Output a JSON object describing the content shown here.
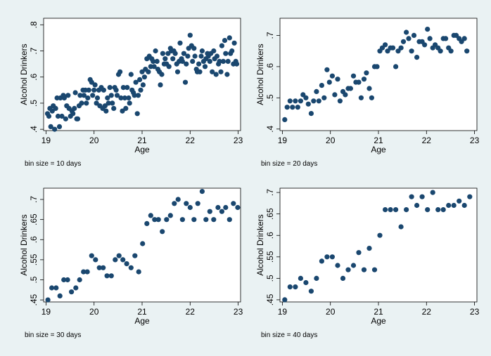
{
  "chart_data": [
    {
      "type": "scatter",
      "xlabel": "Age",
      "ylabel": "Alcohol Drinkers",
      "note": "bin size = 10 days",
      "xlim": [
        18.95,
        23.05
      ],
      "ylim": [
        0.395,
        0.825
      ],
      "xticks": [
        "19",
        "20",
        "21",
        "22",
        "23"
      ],
      "yticks": [
        ".4",
        ".5",
        ".6",
        ".7",
        ".8"
      ],
      "points": [
        [
          19.03,
          0.46
        ],
        [
          19.06,
          0.45
        ],
        [
          19.08,
          0.48
        ],
        [
          19.1,
          0.41
        ],
        [
          19.13,
          0.47
        ],
        [
          19.15,
          0.49
        ],
        [
          19.18,
          0.4
        ],
        [
          19.2,
          0.48
        ],
        [
          19.23,
          0.52
        ],
        [
          19.25,
          0.45
        ],
        [
          19.28,
          0.41
        ],
        [
          19.3,
          0.52
        ],
        [
          19.33,
          0.45
        ],
        [
          19.36,
          0.53
        ],
        [
          19.38,
          0.52
        ],
        [
          19.41,
          0.44
        ],
        [
          19.43,
          0.49
        ],
        [
          19.46,
          0.53
        ],
        [
          19.48,
          0.48
        ],
        [
          19.51,
          0.45
        ],
        [
          19.54,
          0.47
        ],
        [
          19.56,
          0.46
        ],
        [
          19.59,
          0.48
        ],
        [
          19.61,
          0.54
        ],
        [
          19.64,
          0.44
        ],
        [
          19.66,
          0.44
        ],
        [
          19.69,
          0.49
        ],
        [
          19.71,
          0.53
        ],
        [
          19.74,
          0.5
        ],
        [
          19.77,
          0.55
        ],
        [
          19.79,
          0.53
        ],
        [
          19.82,
          0.55
        ],
        [
          19.84,
          0.5
        ],
        [
          19.87,
          0.52
        ],
        [
          19.89,
          0.55
        ],
        [
          19.92,
          0.59
        ],
        [
          19.95,
          0.58
        ],
        [
          19.97,
          0.53
        ],
        [
          20.0,
          0.55
        ],
        [
          20.02,
          0.57
        ],
        [
          20.05,
          0.5
        ],
        [
          20.07,
          0.52
        ],
        [
          20.1,
          0.55
        ],
        [
          20.12,
          0.49
        ],
        [
          20.15,
          0.56
        ],
        [
          20.18,
          0.48
        ],
        [
          20.2,
          0.55
        ],
        [
          20.23,
          0.49
        ],
        [
          20.25,
          0.47
        ],
        [
          20.28,
          0.52
        ],
        [
          20.3,
          0.5
        ],
        [
          20.33,
          0.56
        ],
        [
          20.36,
          0.53
        ],
        [
          20.38,
          0.5
        ],
        [
          20.41,
          0.48
        ],
        [
          20.43,
          0.56
        ],
        [
          20.46,
          0.55
        ],
        [
          20.48,
          0.53
        ],
        [
          20.51,
          0.61
        ],
        [
          20.54,
          0.62
        ],
        [
          20.56,
          0.52
        ],
        [
          20.59,
          0.47
        ],
        [
          20.61,
          0.56
        ],
        [
          20.64,
          0.52
        ],
        [
          20.66,
          0.48
        ],
        [
          20.69,
          0.56
        ],
        [
          20.72,
          0.52
        ],
        [
          20.74,
          0.5
        ],
        [
          20.77,
          0.61
        ],
        [
          20.79,
          0.55
        ],
        [
          20.82,
          0.54
        ],
        [
          20.84,
          0.53
        ],
        [
          20.87,
          0.58
        ],
        [
          20.9,
          0.46
        ],
        [
          20.92,
          0.53
        ],
        [
          20.95,
          0.59
        ],
        [
          20.97,
          0.55
        ],
        [
          21.0,
          0.62
        ],
        [
          21.02,
          0.57
        ],
        [
          21.05,
          0.6
        ],
        [
          21.07,
          0.63
        ],
        [
          21.1,
          0.67
        ],
        [
          21.13,
          0.62
        ],
        [
          21.15,
          0.68
        ],
        [
          21.18,
          0.64
        ],
        [
          21.2,
          0.67
        ],
        [
          21.23,
          0.66
        ],
        [
          21.25,
          0.64
        ],
        [
          21.28,
          0.7
        ],
        [
          21.31,
          0.66
        ],
        [
          21.33,
          0.63
        ],
        [
          21.36,
          0.62
        ],
        [
          21.38,
          0.57
        ],
        [
          21.41,
          0.61
        ],
        [
          21.43,
          0.69
        ],
        [
          21.46,
          0.65
        ],
        [
          21.48,
          0.67
        ],
        [
          21.51,
          0.65
        ],
        [
          21.54,
          0.69
        ],
        [
          21.56,
          0.64
        ],
        [
          21.59,
          0.71
        ],
        [
          21.61,
          0.7
        ],
        [
          21.64,
          0.67
        ],
        [
          21.66,
          0.7
        ],
        [
          21.69,
          0.69
        ],
        [
          21.72,
          0.65
        ],
        [
          21.74,
          0.62
        ],
        [
          21.77,
          0.66
        ],
        [
          21.79,
          0.73
        ],
        [
          21.82,
          0.67
        ],
        [
          21.84,
          0.66
        ],
        [
          21.87,
          0.69
        ],
        [
          21.9,
          0.58
        ],
        [
          21.92,
          0.65
        ],
        [
          21.95,
          0.68
        ],
        [
          21.97,
          0.71
        ],
        [
          22.0,
          0.76
        ],
        [
          22.03,
          0.72
        ],
        [
          22.05,
          0.66
        ],
        [
          22.08,
          0.71
        ],
        [
          22.1,
          0.68
        ],
        [
          22.13,
          0.63
        ],
        [
          22.15,
          0.62
        ],
        [
          22.18,
          0.65
        ],
        [
          22.2,
          0.62
        ],
        [
          22.23,
          0.68
        ],
        [
          22.25,
          0.7
        ],
        [
          22.28,
          0.66
        ],
        [
          22.31,
          0.64
        ],
        [
          22.33,
          0.67
        ],
        [
          22.36,
          0.69
        ],
        [
          22.38,
          0.68
        ],
        [
          22.41,
          0.66
        ],
        [
          22.43,
          0.69
        ],
        [
          22.46,
          0.62
        ],
        [
          22.49,
          0.7
        ],
        [
          22.51,
          0.67
        ],
        [
          22.54,
          0.61
        ],
        [
          22.56,
          0.68
        ],
        [
          22.59,
          0.65
        ],
        [
          22.61,
          0.66
        ],
        [
          22.64,
          0.62
        ],
        [
          22.66,
          0.72
        ],
        [
          22.69,
          0.66
        ],
        [
          22.72,
          0.74
        ],
        [
          22.74,
          0.69
        ],
        [
          22.77,
          0.61
        ],
        [
          22.79,
          0.66
        ],
        [
          22.82,
          0.75
        ],
        [
          22.84,
          0.69
        ],
        [
          22.87,
          0.7
        ],
        [
          22.9,
          0.65
        ],
        [
          22.92,
          0.73
        ],
        [
          22.95,
          0.66
        ],
        [
          22.97,
          0.65
        ]
      ]
    },
    {
      "type": "scatter",
      "xlabel": "Age",
      "ylabel": "Alcohol Drinkers",
      "note": "bin size = 20 days",
      "xlim": [
        18.95,
        23.05
      ],
      "ylim": [
        0.395,
        0.755
      ],
      "xticks": [
        "19",
        "20",
        "21",
        "22",
        "23"
      ],
      "yticks": [
        ".4",
        ".5",
        ".6",
        ".7"
      ],
      "points": [
        [
          19.05,
          0.43
        ],
        [
          19.1,
          0.47
        ],
        [
          19.16,
          0.49
        ],
        [
          19.21,
          0.47
        ],
        [
          19.27,
          0.49
        ],
        [
          19.32,
          0.47
        ],
        [
          19.38,
          0.49
        ],
        [
          19.43,
          0.51
        ],
        [
          19.49,
          0.5
        ],
        [
          19.54,
          0.48
        ],
        [
          19.6,
          0.45
        ],
        [
          19.65,
          0.49
        ],
        [
          19.71,
          0.52
        ],
        [
          19.76,
          0.49
        ],
        [
          19.82,
          0.54
        ],
        [
          19.87,
          0.5
        ],
        [
          19.93,
          0.59
        ],
        [
          19.98,
          0.55
        ],
        [
          20.04,
          0.57
        ],
        [
          20.09,
          0.51
        ],
        [
          20.15,
          0.56
        ],
        [
          20.2,
          0.49
        ],
        [
          20.26,
          0.52
        ],
        [
          20.31,
          0.51
        ],
        [
          20.37,
          0.53
        ],
        [
          20.42,
          0.53
        ],
        [
          20.48,
          0.57
        ],
        [
          20.53,
          0.55
        ],
        [
          20.59,
          0.55
        ],
        [
          20.64,
          0.5
        ],
        [
          20.7,
          0.56
        ],
        [
          20.75,
          0.58
        ],
        [
          20.81,
          0.53
        ],
        [
          20.86,
          0.5
        ],
        [
          20.92,
          0.6
        ],
        [
          20.97,
          0.6
        ],
        [
          21.03,
          0.65
        ],
        [
          21.08,
          0.66
        ],
        [
          21.14,
          0.67
        ],
        [
          21.19,
          0.65
        ],
        [
          21.25,
          0.66
        ],
        [
          21.3,
          0.66
        ],
        [
          21.36,
          0.6
        ],
        [
          21.41,
          0.65
        ],
        [
          21.47,
          0.66
        ],
        [
          21.52,
          0.68
        ],
        [
          21.58,
          0.71
        ],
        [
          21.63,
          0.69
        ],
        [
          21.69,
          0.65
        ],
        [
          21.74,
          0.7
        ],
        [
          21.8,
          0.63
        ],
        [
          21.85,
          0.68
        ],
        [
          21.91,
          0.68
        ],
        [
          21.96,
          0.67
        ],
        [
          22.02,
          0.72
        ],
        [
          22.07,
          0.69
        ],
        [
          22.13,
          0.66
        ],
        [
          22.18,
          0.67
        ],
        [
          22.24,
          0.66
        ],
        [
          22.29,
          0.65
        ],
        [
          22.35,
          0.69
        ],
        [
          22.4,
          0.69
        ],
        [
          22.46,
          0.66
        ],
        [
          22.51,
          0.65
        ],
        [
          22.57,
          0.7
        ],
        [
          22.62,
          0.7
        ],
        [
          22.68,
          0.69
        ],
        [
          22.73,
          0.68
        ],
        [
          22.79,
          0.69
        ],
        [
          22.84,
          0.65
        ]
      ]
    },
    {
      "type": "scatter",
      "xlabel": "Age",
      "ylabel": "Alcohol Drinkers",
      "note": "bin size = 30 days",
      "xlim": [
        18.95,
        23.05
      ],
      "ylim": [
        0.445,
        0.728
      ],
      "xticks": [
        "19",
        "20",
        "21",
        "22",
        "23"
      ],
      "yticks": [
        ".45",
        ".5",
        ".55",
        ".6",
        ".65",
        ".7"
      ],
      "points": [
        [
          19.04,
          0.45
        ],
        [
          19.12,
          0.48
        ],
        [
          19.21,
          0.48
        ],
        [
          19.29,
          0.46
        ],
        [
          19.37,
          0.5
        ],
        [
          19.45,
          0.5
        ],
        [
          19.53,
          0.47
        ],
        [
          19.62,
          0.48
        ],
        [
          19.7,
          0.5
        ],
        [
          19.78,
          0.52
        ],
        [
          19.86,
          0.52
        ],
        [
          19.95,
          0.56
        ],
        [
          20.03,
          0.55
        ],
        [
          20.11,
          0.53
        ],
        [
          20.19,
          0.53
        ],
        [
          20.27,
          0.51
        ],
        [
          20.36,
          0.51
        ],
        [
          20.44,
          0.55
        ],
        [
          20.52,
          0.56
        ],
        [
          20.6,
          0.55
        ],
        [
          20.68,
          0.54
        ],
        [
          20.77,
          0.53
        ],
        [
          20.85,
          0.56
        ],
        [
          20.93,
          0.52
        ],
        [
          21.01,
          0.59
        ],
        [
          21.1,
          0.64
        ],
        [
          21.18,
          0.66
        ],
        [
          21.26,
          0.65
        ],
        [
          21.34,
          0.65
        ],
        [
          21.42,
          0.62
        ],
        [
          21.51,
          0.65
        ],
        [
          21.59,
          0.66
        ],
        [
          21.67,
          0.69
        ],
        [
          21.75,
          0.7
        ],
        [
          21.84,
          0.65
        ],
        [
          21.92,
          0.69
        ],
        [
          22.0,
          0.68
        ],
        [
          22.08,
          0.65
        ],
        [
          22.16,
          0.69
        ],
        [
          22.25,
          0.72
        ],
        [
          22.33,
          0.65
        ],
        [
          22.41,
          0.67
        ],
        [
          22.49,
          0.65
        ],
        [
          22.58,
          0.68
        ],
        [
          22.66,
          0.67
        ],
        [
          22.74,
          0.68
        ],
        [
          22.82,
          0.65
        ],
        [
          22.9,
          0.69
        ],
        [
          22.99,
          0.68
        ]
      ]
    },
    {
      "type": "scatter",
      "xlabel": "Age",
      "ylabel": "Alcohol Drinkers",
      "note": "bin size = 40 days",
      "xlim": [
        18.95,
        23.05
      ],
      "ylim": [
        0.445,
        0.71
      ],
      "xticks": [
        "19",
        "20",
        "21",
        "22",
        "23"
      ],
      "yticks": [
        ".45",
        ".5",
        ".55",
        ".6",
        ".65",
        ".7"
      ],
      "points": [
        [
          19.05,
          0.45
        ],
        [
          19.16,
          0.48
        ],
        [
          19.27,
          0.48
        ],
        [
          19.38,
          0.5
        ],
        [
          19.49,
          0.49
        ],
        [
          19.6,
          0.47
        ],
        [
          19.71,
          0.5
        ],
        [
          19.82,
          0.54
        ],
        [
          19.93,
          0.55
        ],
        [
          20.04,
          0.55
        ],
        [
          20.15,
          0.53
        ],
        [
          20.26,
          0.5
        ],
        [
          20.37,
          0.52
        ],
        [
          20.48,
          0.53
        ],
        [
          20.59,
          0.56
        ],
        [
          20.7,
          0.52
        ],
        [
          20.81,
          0.57
        ],
        [
          20.92,
          0.52
        ],
        [
          21.03,
          0.6
        ],
        [
          21.14,
          0.66
        ],
        [
          21.25,
          0.66
        ],
        [
          21.36,
          0.66
        ],
        [
          21.47,
          0.62
        ],
        [
          21.58,
          0.66
        ],
        [
          21.69,
          0.69
        ],
        [
          21.8,
          0.67
        ],
        [
          21.91,
          0.69
        ],
        [
          22.02,
          0.66
        ],
        [
          22.13,
          0.7
        ],
        [
          22.24,
          0.66
        ],
        [
          22.35,
          0.66
        ],
        [
          22.46,
          0.67
        ],
        [
          22.57,
          0.67
        ],
        [
          22.68,
          0.68
        ],
        [
          22.79,
          0.67
        ],
        [
          22.9,
          0.69
        ]
      ]
    }
  ],
  "colors": {
    "background": "#eaf2f3",
    "plot_area": "#ffffff",
    "marker": "#1a476f"
  }
}
